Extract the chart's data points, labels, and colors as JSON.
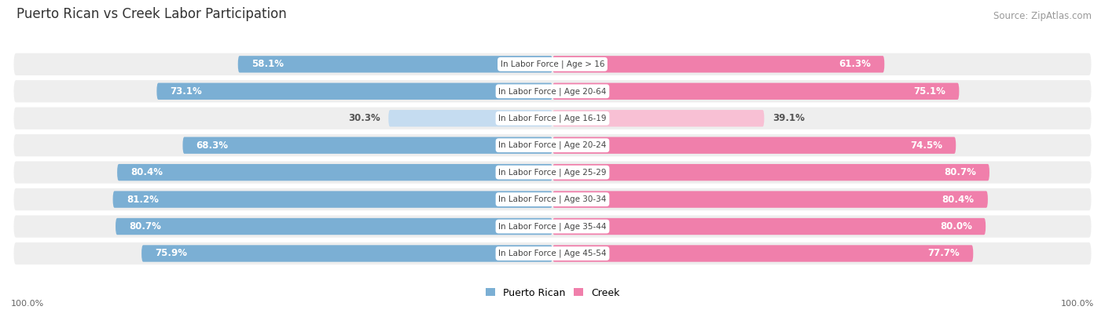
{
  "title": "Puerto Rican vs Creek Labor Participation",
  "source": "Source: ZipAtlas.com",
  "categories": [
    "In Labor Force | Age > 16",
    "In Labor Force | Age 20-64",
    "In Labor Force | Age 16-19",
    "In Labor Force | Age 20-24",
    "In Labor Force | Age 25-29",
    "In Labor Force | Age 30-34",
    "In Labor Force | Age 35-44",
    "In Labor Force | Age 45-54"
  ],
  "puerto_rican": [
    58.1,
    73.1,
    30.3,
    68.3,
    80.4,
    81.2,
    80.7,
    75.9
  ],
  "creek": [
    61.3,
    75.1,
    39.1,
    74.5,
    80.7,
    80.4,
    80.0,
    77.7
  ],
  "blue_color": "#7BAFD4",
  "blue_light_color": "#C5DCF0",
  "pink_color": "#F07FAB",
  "pink_light_color": "#F8C0D4",
  "label_color_dark": "#555555",
  "label_color_white": "#ffffff",
  "row_bg_color": "#eeeeee",
  "center_label_bg": "#ffffff",
  "max_value": 100.0,
  "title_fontsize": 12,
  "source_fontsize": 8.5,
  "bar_label_fontsize": 8.5,
  "category_fontsize": 7.5,
  "axis_label_fontsize": 8,
  "legend_fontsize": 9
}
